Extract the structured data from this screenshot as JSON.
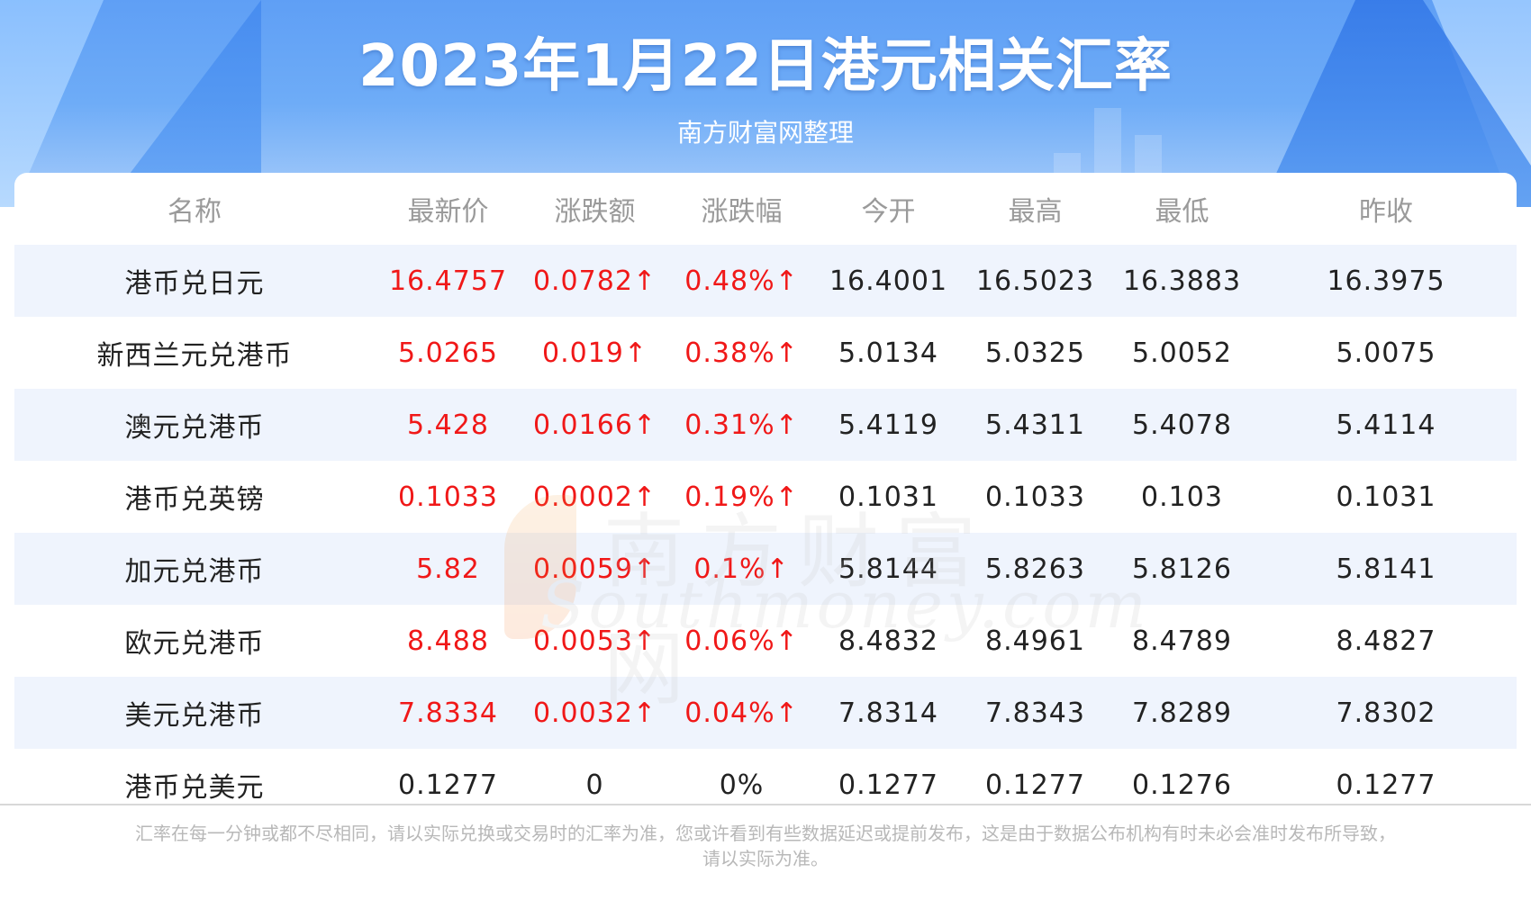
{
  "header": {
    "title": "2023年1月22日港元相关汇率",
    "subtitle": "南方财富网整理"
  },
  "table": {
    "columns": [
      "名称",
      "最新价",
      "涨跌额",
      "涨跌幅",
      "今开",
      "最高",
      "最低",
      "昨收"
    ],
    "rows": [
      {
        "name": "港币兑日元",
        "latest": "16.4757",
        "change": "0.0782↑",
        "change_pct": "0.48%↑",
        "open": "16.4001",
        "high": "16.5023",
        "low": "16.3883",
        "prev_close": "16.3975",
        "direction": "up"
      },
      {
        "name": "新西兰元兑港币",
        "latest": "5.0265",
        "change": "0.019↑",
        "change_pct": "0.38%↑",
        "open": "5.0134",
        "high": "5.0325",
        "low": "5.0052",
        "prev_close": "5.0075",
        "direction": "up"
      },
      {
        "name": "澳元兑港币",
        "latest": "5.428",
        "change": "0.0166↑",
        "change_pct": "0.31%↑",
        "open": "5.4119",
        "high": "5.4311",
        "low": "5.4078",
        "prev_close": "5.4114",
        "direction": "up"
      },
      {
        "name": "港币兑英镑",
        "latest": "0.1033",
        "change": "0.0002↑",
        "change_pct": "0.19%↑",
        "open": "0.1031",
        "high": "0.1033",
        "low": "0.103",
        "prev_close": "0.1031",
        "direction": "up"
      },
      {
        "name": "加元兑港币",
        "latest": "5.82",
        "change": "0.0059↑",
        "change_pct": "0.1%↑",
        "open": "5.8144",
        "high": "5.8263",
        "low": "5.8126",
        "prev_close": "5.8141",
        "direction": "up"
      },
      {
        "name": "欧元兑港币",
        "latest": "8.488",
        "change": "0.0053↑",
        "change_pct": "0.06%↑",
        "open": "8.4832",
        "high": "8.4961",
        "low": "8.4789",
        "prev_close": "8.4827",
        "direction": "up"
      },
      {
        "name": "美元兑港币",
        "latest": "7.8334",
        "change": "0.0032↑",
        "change_pct": "0.04%↑",
        "open": "7.8314",
        "high": "7.8343",
        "low": "7.8289",
        "prev_close": "7.8302",
        "direction": "up"
      },
      {
        "name": "港币兑美元",
        "latest": "0.1277",
        "change": "0",
        "change_pct": "0%",
        "open": "0.1277",
        "high": "0.1277",
        "low": "0.1276",
        "prev_close": "0.1277",
        "direction": "flat"
      }
    ]
  },
  "watermark": {
    "cn": "南方财富网",
    "en": "Southmoney.com"
  },
  "footnote": {
    "line1": "汇率在每一分钟或都不尽相同，请以实际兑换或交易时的汇率为准，您或许看到有些数据延迟或提前发布，这是由于数据公布机构有时未必会准时发布所导致，",
    "line2": "请以实际为准。"
  },
  "colors": {
    "up": "#f01818",
    "flat": "#222222",
    "header_blue": "#6eacf7",
    "row_stripe": "#eff4fd",
    "column_header": "#9a9a9a"
  }
}
